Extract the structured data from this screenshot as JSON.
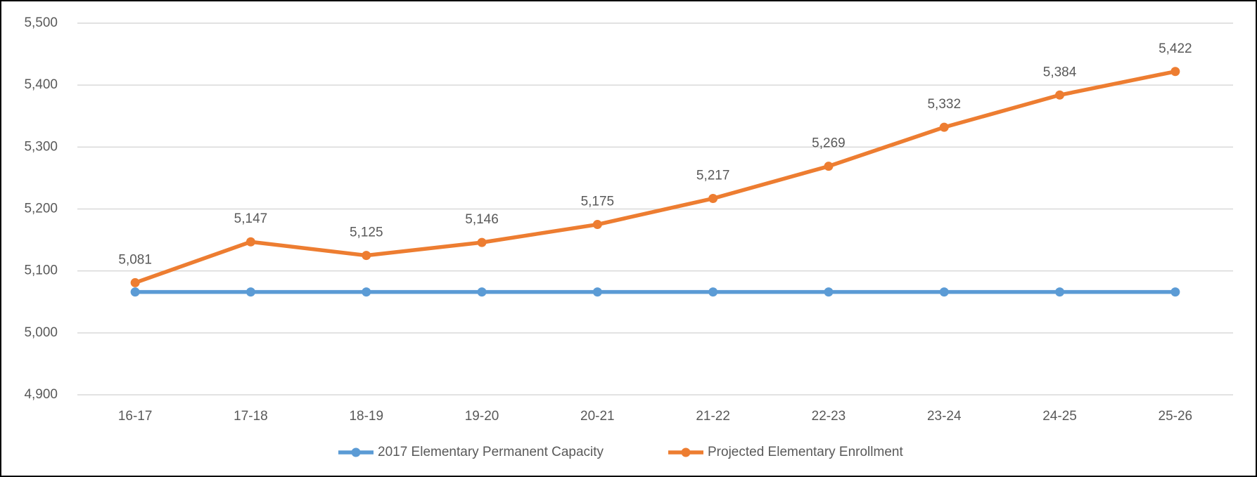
{
  "chart_data": {
    "type": "line",
    "categories": [
      "16-17",
      "17-18",
      "18-19",
      "19-20",
      "20-21",
      "21-22",
      "22-23",
      "23-24",
      "24-25",
      "25-26"
    ],
    "series": [
      {
        "name": "2017 Elementary Permanent Capacity",
        "color": "#5b9bd5",
        "values": [
          5066,
          5066,
          5066,
          5066,
          5066,
          5066,
          5066,
          5066,
          5066,
          5066
        ]
      },
      {
        "name": "Projected Elementary Enrollment",
        "color": "#ed7d31",
        "values": [
          5081,
          5147,
          5125,
          5146,
          5175,
          5217,
          5269,
          5332,
          5384,
          5422
        ],
        "value_labels": [
          "5,081",
          "5,147",
          "5,125",
          "5,146",
          "5,175",
          "5,217",
          "5,269",
          "5,332",
          "5,384",
          "5,422"
        ]
      }
    ],
    "ylim": [
      4900,
      5500
    ],
    "yticks": [
      {
        "value": 4900,
        "label": "4,900"
      },
      {
        "value": 5000,
        "label": "5,000"
      },
      {
        "value": 5100,
        "label": "5,100"
      },
      {
        "value": 5200,
        "label": "5,200"
      },
      {
        "value": 5300,
        "label": "5,300"
      },
      {
        "value": 5400,
        "label": "5,400"
      },
      {
        "value": 5500,
        "label": "5,500"
      }
    ],
    "grid": true,
    "legend": "bottom"
  }
}
